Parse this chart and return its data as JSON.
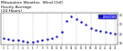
{
  "title": "Milwaukee Weather  Wind Chill\nHourly Average\n(24 Hours)",
  "title_fontsize": 3.2,
  "bg_color": "#ffffff",
  "line_color": "#0000cc",
  "grid_color": "#aaaaaa",
  "hours": [
    0,
    1,
    2,
    3,
    4,
    5,
    6,
    7,
    8,
    9,
    10,
    11,
    12,
    13,
    14,
    15,
    16,
    17,
    18,
    19,
    20,
    21,
    22,
    23
  ],
  "wind_chill": [
    15,
    14,
    13,
    13,
    12,
    11,
    11,
    12,
    13,
    14,
    15,
    17,
    22,
    34,
    38,
    36,
    33,
    30,
    26,
    24,
    23,
    22,
    21,
    20
  ],
  "ylim": [
    8,
    42
  ],
  "yticks": [
    10,
    20,
    30,
    40
  ],
  "ytick_labels": [
    "10",
    "20",
    "30",
    "40"
  ],
  "grid_hours": [
    0,
    3,
    6,
    9,
    12,
    15,
    18,
    21,
    23
  ],
  "legend_label": "Wind Chill",
  "legend_color": "#0000ff",
  "legend_text_color": "#ffffff"
}
